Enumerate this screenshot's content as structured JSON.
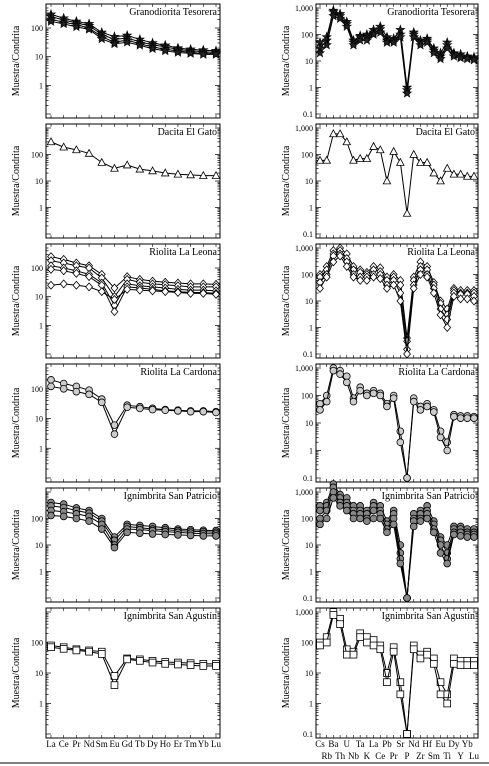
{
  "ylabel": "Muestra/Condrita",
  "ree_elements": [
    "La",
    "Ce",
    "Pr",
    "Nd",
    "Sm",
    "Eu",
    "Gd",
    "Tb",
    "Dy",
    "Ho",
    "Er",
    "Tm",
    "Yb",
    "Lu"
  ],
  "ree_tick_labels": [
    "La",
    "Ce",
    "Pr",
    "Nd",
    "Sm",
    "Eu",
    "Gd",
    "Tb",
    "Dy",
    "Ho",
    "Er",
    "Tm",
    "Yb",
    "Lu"
  ],
  "spider_elements": [
    "Cs",
    "Rb",
    "Ba",
    "Th",
    "U",
    "Nb",
    "Ta",
    "K",
    "La",
    "Ce",
    "Pb",
    "Pr",
    "Sr",
    "P",
    "Nd",
    "Zr",
    "Hf",
    "Sm",
    "Eu",
    "Ti",
    "Dy",
    "Y",
    "Yb",
    "Lu"
  ],
  "spider_tick_labels_top": [
    "Cs",
    "Ba",
    "U",
    "Ta",
    "La",
    "Pb",
    "Sr",
    "Nd",
    "Hf",
    "Eu",
    "Dy",
    "Yb"
  ],
  "spider_tick_labels_bottom": [
    "Rb",
    "Th",
    "Nb",
    "K",
    "Ce",
    "Pr",
    "P",
    "Zr",
    "Sm",
    "Ti",
    "Y",
    "Lu"
  ],
  "chart_data": [
    {
      "type": "line",
      "panel": "ree",
      "title": "Granodiorita Tesorera",
      "ylabel": "Muestra/Condrita",
      "yscale": "log",
      "ylim": [
        0.1,
        500
      ],
      "yticks": [
        "100",
        "10",
        "1"
      ],
      "marker": "star",
      "fill": "#222",
      "series": [
        {
          "values": [
            300,
            220,
            170,
            140,
            70,
            50,
            55,
            40,
            30,
            25,
            20,
            18,
            17,
            16
          ]
        },
        {
          "values": [
            250,
            190,
            150,
            120,
            60,
            40,
            45,
            33,
            26,
            22,
            18,
            16,
            15,
            14
          ]
        },
        {
          "values": [
            200,
            160,
            130,
            100,
            50,
            32,
            38,
            28,
            22,
            18,
            16,
            14,
            13,
            13
          ]
        },
        {
          "values": [
            170,
            140,
            110,
            90,
            42,
            28,
            32,
            25,
            19,
            16,
            14,
            13,
            12,
            12
          ]
        }
      ]
    },
    {
      "type": "line",
      "panel": "ree",
      "title": "Dacita El Gato",
      "ylabel": "Muestra/Condrita",
      "yscale": "log",
      "ylim": [
        0.1,
        1000
      ],
      "yticks": [
        "100",
        "10",
        "1"
      ],
      "marker": "triangle",
      "fill": "#fff",
      "series": [
        {
          "values": [
            300,
            190,
            150,
            110,
            50,
            30,
            40,
            28,
            24,
            20,
            18,
            17,
            16,
            16
          ]
        }
      ]
    },
    {
      "type": "line",
      "panel": "ree",
      "title": "Riolita La Leona",
      "ylabel": "Muestra/Condrita",
      "yscale": "log",
      "ylim": [
        0.1,
        500
      ],
      "yticks": [
        "100",
        "10",
        "1"
      ],
      "marker": "diamond",
      "fill": "#fff",
      "series": [
        {
          "values": [
            250,
            200,
            150,
            120,
            60,
            20,
            50,
            40,
            35,
            32,
            30,
            28,
            28,
            27
          ]
        },
        {
          "values": [
            180,
            150,
            120,
            100,
            45,
            10,
            40,
            32,
            28,
            26,
            24,
            22,
            22,
            22
          ]
        },
        {
          "values": [
            120,
            100,
            80,
            60,
            30,
            5,
            28,
            24,
            22,
            20,
            18,
            17,
            17,
            16
          ]
        },
        {
          "values": [
            90,
            80,
            65,
            50,
            25,
            3,
            22,
            20,
            18,
            16,
            15,
            14,
            14,
            13
          ]
        },
        {
          "values": [
            25,
            28,
            25,
            22,
            15,
            8,
            18,
            17,
            16,
            15,
            14,
            13,
            13,
            12
          ]
        }
      ]
    },
    {
      "type": "line",
      "panel": "ree",
      "title": "Riolita La Cardona",
      "ylabel": "Muestra/Condrita",
      "yscale": "log",
      "ylim": [
        0.1,
        500
      ],
      "yticks": [
        "100",
        "10",
        "1"
      ],
      "marker": "circle",
      "fill": "#ccc",
      "series": [
        {
          "values": [
            200,
            150,
            120,
            90,
            45,
            6,
            28,
            25,
            22,
            20,
            19,
            18,
            18,
            17
          ]
        },
        {
          "values": [
            120,
            100,
            80,
            65,
            35,
            3,
            24,
            22,
            20,
            19,
            18,
            17,
            17,
            16
          ]
        }
      ]
    },
    {
      "type": "line",
      "panel": "ree",
      "title": "Ignimbrita San Patricio",
      "ylabel": "Muestra/Condrita",
      "yscale": "log",
      "ylim": [
        0.1,
        1000
      ],
      "yticks": [
        "100",
        "10",
        "1"
      ],
      "marker": "circle",
      "fill": "#888",
      "series": [
        {
          "values": [
            400,
            350,
            250,
            200,
            100,
            20,
            60,
            55,
            50,
            45,
            40,
            38,
            36,
            35
          ]
        },
        {
          "values": [
            300,
            260,
            200,
            160,
            80,
            15,
            50,
            45,
            40,
            38,
            35,
            33,
            32,
            30
          ]
        },
        {
          "values": [
            200,
            180,
            150,
            120,
            60,
            10,
            40,
            38,
            35,
            32,
            30,
            28,
            27,
            26
          ]
        },
        {
          "values": [
            130,
            120,
            100,
            80,
            40,
            8,
            30,
            28,
            26,
            25,
            24,
            23,
            22,
            22
          ]
        }
      ]
    },
    {
      "type": "line",
      "panel": "ree",
      "title": "Ignimbrita San Agustín",
      "ylabel": "Muestra/Condrita",
      "yscale": "log",
      "ylim": [
        0.1,
        1000
      ],
      "yticks": [
        "100",
        "10",
        "1"
      ],
      "marker": "square",
      "fill": "#fff",
      "series": [
        {
          "values": [
            80,
            70,
            60,
            55,
            50,
            8,
            30,
            28,
            25,
            23,
            22,
            21,
            20,
            20
          ]
        },
        {
          "values": [
            70,
            62,
            55,
            50,
            42,
            4,
            28,
            25,
            22,
            20,
            19,
            18,
            17,
            17
          ]
        }
      ]
    },
    {
      "type": "line",
      "panel": "spider",
      "title": "Granodiorita Tesorera",
      "ylabel": "Muestra/Condrita",
      "yscale": "log",
      "ylim": [
        0.1,
        1000
      ],
      "yticks": [
        "1,000",
        "100",
        "10",
        "1",
        "0.1"
      ],
      "marker": "star",
      "fill": "#222",
      "series": [
        {
          "values": [
            50,
            80,
            800,
            600,
            300,
            60,
            90,
            100,
            150,
            200,
            80,
            70,
            150,
            1,
            120,
            60,
            70,
            30,
            20,
            50,
            20,
            18,
            15,
            14
          ]
        },
        {
          "values": [
            30,
            60,
            700,
            500,
            250,
            50,
            80,
            80,
            120,
            160,
            60,
            60,
            100,
            0.8,
            100,
            50,
            60,
            25,
            15,
            40,
            18,
            15,
            13,
            12
          ]
        },
        {
          "values": [
            20,
            40,
            500,
            400,
            200,
            40,
            60,
            60,
            100,
            120,
            50,
            50,
            80,
            0.6,
            80,
            40,
            50,
            20,
            12,
            30,
            15,
            13,
            12,
            11
          ]
        }
      ]
    },
    {
      "type": "line",
      "panel": "spider",
      "title": "Dacita El Gato",
      "ylabel": "Muestra/Condrita",
      "yscale": "log",
      "ylim": [
        0.1,
        1000
      ],
      "yticks": [
        "1,000",
        "100",
        "10",
        "1",
        "0.1"
      ],
      "marker": "triangle",
      "fill": "#fff",
      "series": [
        {
          "values": [
            60,
            60,
            600,
            600,
            300,
            60,
            70,
            70,
            200,
            150,
            10,
            130,
            50,
            0.6,
            100,
            50,
            50,
            20,
            10,
            30,
            18,
            18,
            15,
            15
          ]
        }
      ]
    },
    {
      "type": "line",
      "panel": "spider",
      "title": "Riolita La Leona",
      "ylabel": "Muestra/Condrita",
      "yscale": "log",
      "ylim": [
        0.1,
        1000
      ],
      "yticks": [
        "1,000",
        "100",
        "10",
        "1",
        "0.1"
      ],
      "marker": "diamond",
      "fill": "#fff",
      "series": [
        {
          "values": [
            100,
            200,
            800,
            1000,
            600,
            200,
            150,
            120,
            200,
            180,
            80,
            100,
            60,
            0.4,
            80,
            300,
            200,
            50,
            10,
            5,
            30,
            25,
            25,
            25
          ]
        },
        {
          "values": [
            80,
            150,
            600,
            800,
            400,
            150,
            120,
            100,
            150,
            130,
            60,
            80,
            40,
            0.3,
            60,
            200,
            150,
            40,
            8,
            3,
            25,
            20,
            20,
            20
          ]
        },
        {
          "values": [
            50,
            100,
            500,
            600,
            300,
            100,
            80,
            80,
            100,
            100,
            40,
            60,
            20,
            0.15,
            40,
            150,
            100,
            30,
            5,
            2,
            20,
            18,
            18,
            15
          ]
        },
        {
          "values": [
            30,
            80,
            300,
            500,
            200,
            80,
            60,
            60,
            80,
            70,
            30,
            40,
            10,
            0.1,
            30,
            100,
            80,
            20,
            3,
            1,
            15,
            12,
            12,
            10
          ]
        }
      ]
    },
    {
      "type": "line",
      "panel": "spider",
      "title": "Riolita La Cardona",
      "ylabel": "Muestra/Condrita",
      "yscale": "log",
      "ylim": [
        0.1,
        1000
      ],
      "yticks": [
        "1,000",
        "100",
        "10",
        "1",
        "0.1"
      ],
      "marker": "circle",
      "fill": "#ccc",
      "series": [
        {
          "values": [
            50,
            100,
            1000,
            800,
            500,
            80,
            200,
            120,
            150,
            120,
            50,
            100,
            5,
            0.08,
            80,
            40,
            50,
            30,
            5,
            2,
            20,
            18,
            18,
            17
          ]
        },
        {
          "values": [
            30,
            60,
            800,
            600,
            300,
            60,
            150,
            100,
            120,
            100,
            40,
            80,
            2,
            0.08,
            60,
            30,
            40,
            25,
            3,
            1,
            17,
            15,
            15,
            15
          ]
        }
      ]
    },
    {
      "type": "line",
      "panel": "spider",
      "title": "Ignimbrita San Patricio",
      "ylabel": "Muestra/Condrita",
      "yscale": "log",
      "ylim": [
        0.1,
        1000
      ],
      "yticks": [
        "1,000",
        "100",
        "10",
        "1",
        "0.1"
      ],
      "marker": "circle",
      "fill": "#888",
      "series": [
        {
          "values": [
            300,
            400,
            2000,
            800,
            600,
            300,
            300,
            200,
            400,
            300,
            80,
            200,
            10,
            0.08,
            150,
            200,
            300,
            80,
            20,
            10,
            50,
            50,
            40,
            40
          ]
        },
        {
          "values": [
            200,
            300,
            1500,
            600,
            400,
            200,
            200,
            150,
            300,
            200,
            60,
            150,
            5,
            0.05,
            100,
            150,
            200,
            60,
            15,
            5,
            40,
            40,
            30,
            30
          ]
        },
        {
          "values": [
            100,
            200,
            1000,
            400,
            300,
            150,
            150,
            100,
            200,
            150,
            40,
            100,
            3,
            0.04,
            80,
            100,
            150,
            40,
            10,
            3,
            30,
            30,
            25,
            25
          ]
        },
        {
          "values": [
            60,
            100,
            600,
            300,
            200,
            100,
            100,
            80,
            100,
            100,
            30,
            60,
            2,
            0.03,
            50,
            80,
            100,
            30,
            5,
            2,
            25,
            22,
            20,
            20
          ]
        }
      ]
    },
    {
      "type": "line",
      "panel": "spider",
      "title": "Ignimbrita San Agustín",
      "ylabel": "Muestra/Condrita",
      "yscale": "log",
      "ylim": [
        0.1,
        1000
      ],
      "yticks": [
        "1,000",
        "100",
        "10",
        "1",
        "0.1"
      ],
      "marker": "square",
      "fill": "#fff",
      "series": [
        {
          "values": [
            100,
            150,
            1000,
            600,
            60,
            50,
            200,
            150,
            120,
            80,
            10,
            70,
            5,
            0.1,
            80,
            40,
            50,
            30,
            5,
            2,
            30,
            25,
            25,
            25
          ]
        },
        {
          "values": [
            80,
            100,
            800,
            400,
            40,
            40,
            150,
            100,
            80,
            60,
            5,
            50,
            2,
            0.08,
            60,
            30,
            40,
            20,
            2,
            1,
            20,
            18,
            18,
            18
          ]
        }
      ]
    }
  ]
}
